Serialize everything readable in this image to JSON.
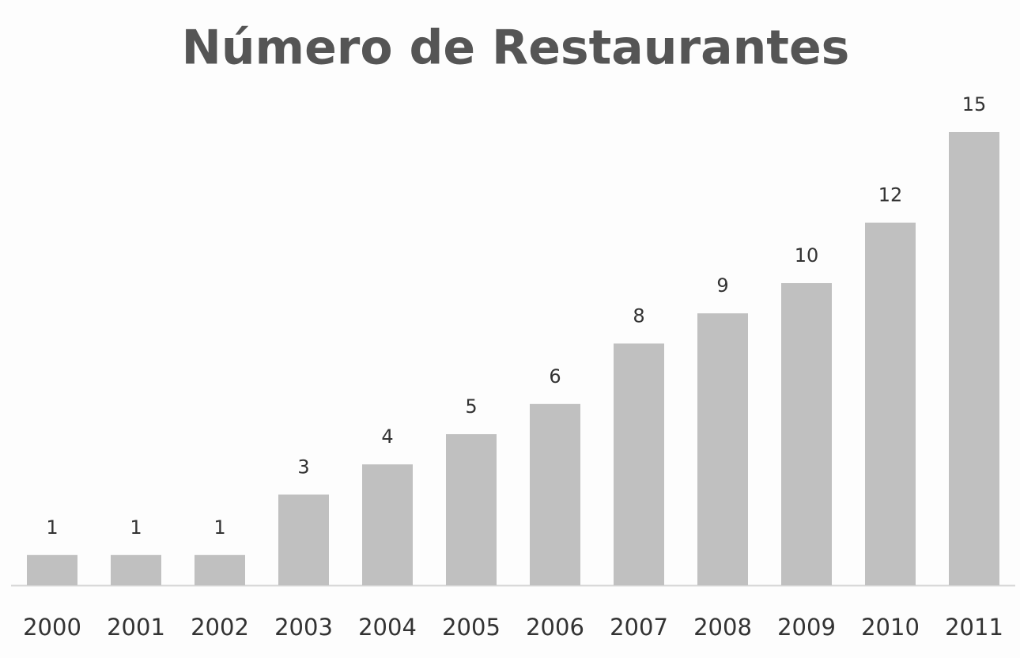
{
  "chart_data": {
    "type": "bar",
    "title": "Número de Restaurantes",
    "categories": [
      "2000",
      "2001",
      "2002",
      "2003",
      "2004",
      "2005",
      "2006",
      "2007",
      "2008",
      "2009",
      "2010",
      "2011"
    ],
    "values": [
      1,
      1,
      1,
      3,
      4,
      5,
      6,
      8,
      9,
      10,
      12,
      15
    ],
    "color": "#c0c0c0"
  }
}
